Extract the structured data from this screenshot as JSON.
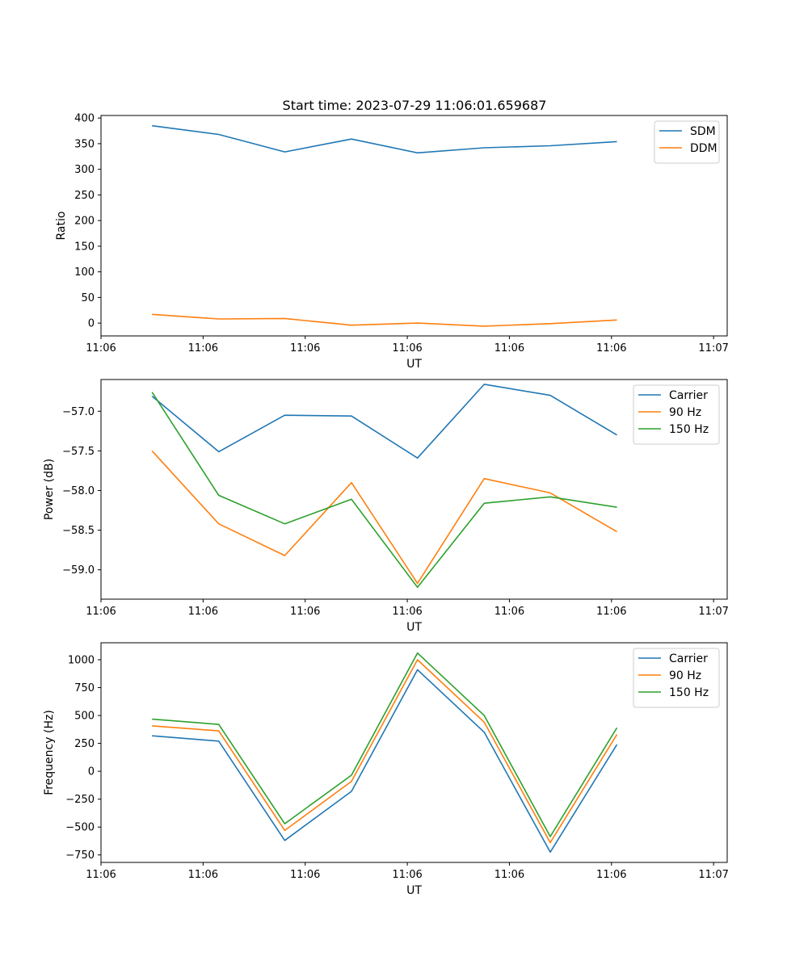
{
  "title": "Start time: 2023-07-29 11:06:01.659687",
  "chart_data": [
    {
      "type": "line",
      "ylabel": "Ratio",
      "xlabel": "UT",
      "xlim": [
        0,
        9.2
      ],
      "x_ticks": [
        {
          "v": 0,
          "label": "11:06"
        },
        {
          "v": 1.5,
          "label": "11:06"
        },
        {
          "v": 3,
          "label": "11:06"
        },
        {
          "v": 4.5,
          "label": "11:06"
        },
        {
          "v": 6,
          "label": "11:06"
        },
        {
          "v": 7.5,
          "label": "11:06"
        },
        {
          "v": 9,
          "label": "11:07"
        }
      ],
      "ylim": [
        -25,
        405
      ],
      "y_ticks": [
        0,
        50,
        100,
        150,
        200,
        250,
        300,
        350,
        400
      ],
      "x": [
        0.75,
        1.73,
        2.7,
        3.68,
        4.65,
        5.63,
        6.6,
        7.58
      ],
      "series": [
        {
          "name": "SDM",
          "color": "#1f77b4",
          "values": [
            385,
            368,
            334,
            359,
            332,
            342,
            346,
            354
          ]
        },
        {
          "name": "DDM",
          "color": "#ff7f0e",
          "values": [
            17,
            8,
            9,
            -4,
            0,
            -6,
            -1,
            6
          ]
        }
      ],
      "legend": "top-right"
    },
    {
      "type": "line",
      "ylabel": "Power (dB)",
      "xlabel": "UT",
      "xlim": [
        0,
        9.2
      ],
      "x_ticks": [
        {
          "v": 0,
          "label": "11:06"
        },
        {
          "v": 1.5,
          "label": "11:06"
        },
        {
          "v": 3,
          "label": "11:06"
        },
        {
          "v": 4.5,
          "label": "11:06"
        },
        {
          "v": 6,
          "label": "11:06"
        },
        {
          "v": 7.5,
          "label": "11:06"
        },
        {
          "v": 9,
          "label": "11:07"
        }
      ],
      "ylim": [
        -59.37,
        -56.6
      ],
      "y_ticks": [
        -57.0,
        -57.5,
        -58.0,
        -58.5,
        -59.0
      ],
      "y_tick_labels": [
        "−57.0",
        "−57.5",
        "−58.0",
        "−58.5",
        "−59.0"
      ],
      "x": [
        0.75,
        1.73,
        2.7,
        3.68,
        4.65,
        5.63,
        6.6,
        7.58
      ],
      "series": [
        {
          "name": "Carrier",
          "color": "#1f77b4",
          "values": [
            -56.81,
            -57.51,
            -57.05,
            -57.06,
            -57.59,
            -56.66,
            -56.8,
            -57.3
          ]
        },
        {
          "name": "90 Hz",
          "color": "#ff7f0e",
          "values": [
            -57.5,
            -58.42,
            -58.82,
            -57.9,
            -59.17,
            -57.85,
            -58.03,
            -58.52
          ]
        },
        {
          "name": "150 Hz",
          "color": "#2ca02c",
          "values": [
            -56.76,
            -58.06,
            -58.42,
            -58.11,
            -59.22,
            -58.16,
            -58.08,
            -58.21
          ]
        }
      ],
      "legend": "top-right"
    },
    {
      "type": "line",
      "ylabel": "Frequency (Hz)",
      "xlabel": "UT",
      "xlim": [
        0,
        9.2
      ],
      "x_ticks": [
        {
          "v": 0,
          "label": "11:06"
        },
        {
          "v": 1.5,
          "label": "11:06"
        },
        {
          "v": 3,
          "label": "11:06"
        },
        {
          "v": 4.5,
          "label": "11:06"
        },
        {
          "v": 6,
          "label": "11:06"
        },
        {
          "v": 7.5,
          "label": "11:06"
        },
        {
          "v": 9,
          "label": "11:07"
        }
      ],
      "ylim": [
        -817,
        1152
      ],
      "y_ticks": [
        -750,
        -500,
        -250,
        0,
        250,
        500,
        750,
        1000
      ],
      "y_tick_labels": [
        "−750",
        "−500",
        "−250",
        "0",
        "250",
        "500",
        "750",
        "1000"
      ],
      "x": [
        0.75,
        1.73,
        2.7,
        3.68,
        4.65,
        5.63,
        6.6,
        7.58
      ],
      "series": [
        {
          "name": "Carrier",
          "color": "#1f77b4",
          "values": [
            318,
            270,
            -620,
            -180,
            910,
            350,
            -725,
            240
          ]
        },
        {
          "name": "90 Hz",
          "color": "#ff7f0e",
          "values": [
            407,
            362,
            -530,
            -90,
            1000,
            440,
            -640,
            330
          ]
        },
        {
          "name": "150 Hz",
          "color": "#2ca02c",
          "values": [
            467,
            420,
            -470,
            -35,
            1060,
            500,
            -585,
            390
          ]
        }
      ],
      "legend": "top-right"
    }
  ]
}
